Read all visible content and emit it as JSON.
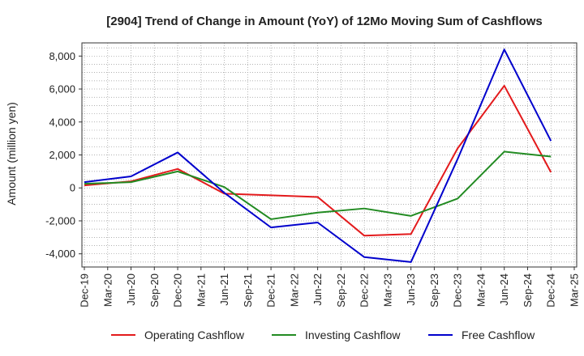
{
  "chart_data": {
    "type": "line",
    "title": "[2904]  Trend of Change in Amount (YoY) of 12Mo Moving Sum of Cashflows",
    "xlabel": "",
    "ylabel": "Amount (million yen)",
    "categories": [
      "Dec-19",
      "Mar-20",
      "Jun-20",
      "Sep-20",
      "Dec-20",
      "Mar-21",
      "Jun-21",
      "Sep-21",
      "Dec-21",
      "Mar-22",
      "Jun-22",
      "Sep-22",
      "Dec-22",
      "Mar-23",
      "Jun-23",
      "Sep-23",
      "Dec-23",
      "Mar-24",
      "Jun-24",
      "Sep-24",
      "Dec-24",
      "Mar-25"
    ],
    "ylim": [
      -4800,
      8800
    ],
    "yticks": [
      -4000,
      -2000,
      0,
      2000,
      4000,
      6000,
      8000
    ],
    "ytick_labels": [
      "-4,000",
      "-2,000",
      "0",
      "2,000",
      "4,000",
      "6,000",
      "8,000"
    ],
    "grid": true,
    "legend_position": "bottom",
    "series": [
      {
        "name": "Operating Cashflow",
        "color": "#e31a1c",
        "points": [
          {
            "x": "Dec-19",
            "y": 150
          },
          {
            "x": "Jun-20",
            "y": 400
          },
          {
            "x": "Dec-20",
            "y": 1150
          },
          {
            "x": "Jun-21",
            "y": -350
          },
          {
            "x": "Dec-21",
            "y": -450
          },
          {
            "x": "Jun-22",
            "y": -550
          },
          {
            "x": "Dec-22",
            "y": -2900
          },
          {
            "x": "Jun-23",
            "y": -2800
          },
          {
            "x": "Dec-23",
            "y": 2400
          },
          {
            "x": "Jun-24",
            "y": 6200
          },
          {
            "x": "Dec-24",
            "y": 950
          }
        ]
      },
      {
        "name": "Investing Cashflow",
        "color": "#228b22",
        "points": [
          {
            "x": "Dec-19",
            "y": 250
          },
          {
            "x": "Jun-20",
            "y": 350
          },
          {
            "x": "Dec-20",
            "y": 1000
          },
          {
            "x": "Jun-21",
            "y": 50
          },
          {
            "x": "Dec-21",
            "y": -1900
          },
          {
            "x": "Jun-22",
            "y": -1500
          },
          {
            "x": "Dec-22",
            "y": -1250
          },
          {
            "x": "Jun-23",
            "y": -1700
          },
          {
            "x": "Dec-23",
            "y": -650
          },
          {
            "x": "Jun-24",
            "y": 2200
          },
          {
            "x": "Dec-24",
            "y": 1900
          }
        ]
      },
      {
        "name": "Free Cashflow",
        "color": "#0000cc",
        "points": [
          {
            "x": "Dec-19",
            "y": 350
          },
          {
            "x": "Jun-20",
            "y": 700
          },
          {
            "x": "Dec-20",
            "y": 2150
          },
          {
            "x": "Jun-21",
            "y": -300
          },
          {
            "x": "Dec-21",
            "y": -2400
          },
          {
            "x": "Jun-22",
            "y": -2100
          },
          {
            "x": "Dec-22",
            "y": -4200
          },
          {
            "x": "Jun-23",
            "y": -4500
          },
          {
            "x": "Dec-23",
            "y": 1750
          },
          {
            "x": "Jun-24",
            "y": 8400
          },
          {
            "x": "Dec-24",
            "y": 2850
          }
        ]
      }
    ]
  }
}
